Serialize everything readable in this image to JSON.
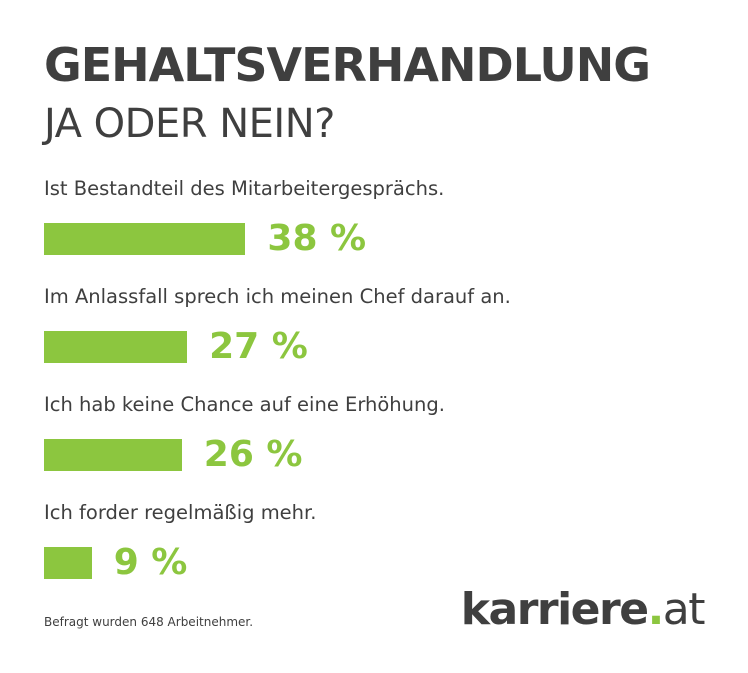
{
  "title": "GEHALTSVERHANDLUNG",
  "subtitle": "JA ODER NEIN?",
  "chart_data": {
    "type": "bar",
    "orientation": "horizontal",
    "categories": [
      "Ist Bestandteil des Mitarbeitergesprächs.",
      "Im Anlassfall sprech ich meinen Chef darauf an.",
      "Ich hab keine Chance auf eine Erhöhung.",
      "Ich forder regelmäßig mehr."
    ],
    "values": [
      38,
      27,
      26,
      9
    ],
    "value_labels": [
      "38 %",
      "27 %",
      "26 %",
      "9 %"
    ],
    "unit": "%",
    "xlim": [
      0,
      100
    ],
    "grid": false,
    "bar_color": "#8cc63f"
  },
  "footnote": "Befragt wurden 648 Arbeitnehmer.",
  "logo": {
    "brand": "karriere",
    "dot": ".",
    "tld": "at"
  },
  "colors": {
    "accent": "#8cc63f",
    "text": "#3f3f3f",
    "background": "#ffffff"
  }
}
